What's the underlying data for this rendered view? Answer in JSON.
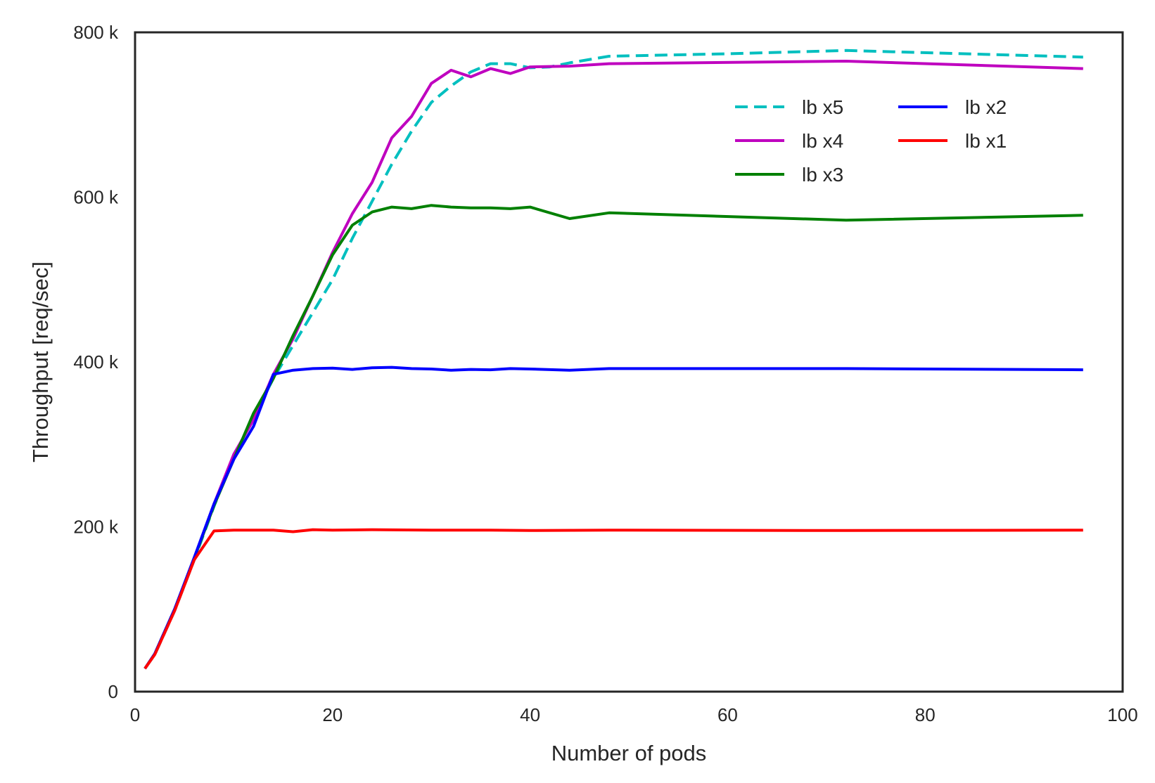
{
  "chart_data": {
    "type": "line",
    "title": "",
    "xlabel": "Number of pods",
    "ylabel": "Throughput [req/sec]",
    "xlim": [
      0,
      100
    ],
    "ylim": [
      0,
      800000
    ],
    "x_ticks": [
      0,
      20,
      40,
      60,
      80,
      100
    ],
    "x_tick_labels": [
      "0",
      "20",
      "40",
      "60",
      "80",
      "100"
    ],
    "y_ticks": [
      0,
      200000,
      400000,
      600000,
      800000
    ],
    "y_tick_labels": [
      "0",
      "200 k",
      "400 k",
      "600 k",
      "800 k"
    ],
    "grid": false,
    "legend": {
      "placement": "upper-right",
      "columns": 2
    },
    "series": [
      {
        "name": "lb x5",
        "color": "#00bfbf",
        "dashed": true,
        "points": [
          [
            1,
            28000
          ],
          [
            2,
            45000
          ],
          [
            4,
            98000
          ],
          [
            6,
            160000
          ],
          [
            8,
            225000
          ],
          [
            10,
            285000
          ],
          [
            12,
            333000
          ],
          [
            14,
            380000
          ],
          [
            16,
            420000
          ],
          [
            18,
            460000
          ],
          [
            20,
            500000
          ],
          [
            22,
            550000
          ],
          [
            24,
            595000
          ],
          [
            26,
            640000
          ],
          [
            28,
            680000
          ],
          [
            30,
            715000
          ],
          [
            32,
            735000
          ],
          [
            34,
            752000
          ],
          [
            36,
            762000
          ],
          [
            38,
            762000
          ],
          [
            40,
            757000
          ],
          [
            42,
            758000
          ],
          [
            44,
            763000
          ],
          [
            48,
            771000
          ],
          [
            60,
            774000
          ],
          [
            72,
            778000
          ],
          [
            96,
            770000
          ]
        ]
      },
      {
        "name": "lb x4",
        "color": "#bf00bf",
        "dashed": false,
        "points": [
          [
            1,
            28000
          ],
          [
            2,
            46000
          ],
          [
            4,
            100000
          ],
          [
            6,
            162000
          ],
          [
            8,
            228000
          ],
          [
            10,
            288000
          ],
          [
            12,
            330000
          ],
          [
            14,
            385000
          ],
          [
            16,
            428000
          ],
          [
            18,
            480000
          ],
          [
            20,
            533000
          ],
          [
            22,
            580000
          ],
          [
            24,
            618000
          ],
          [
            26,
            672000
          ],
          [
            28,
            698000
          ],
          [
            30,
            738000
          ],
          [
            32,
            754000
          ],
          [
            34,
            746000
          ],
          [
            36,
            756000
          ],
          [
            38,
            750000
          ],
          [
            40,
            758000
          ],
          [
            44,
            759000
          ],
          [
            48,
            762000
          ],
          [
            72,
            765000
          ],
          [
            96,
            756000
          ]
        ]
      },
      {
        "name": "lb x3",
        "color": "#008000",
        "dashed": false,
        "points": [
          [
            1,
            28000
          ],
          [
            2,
            46000
          ],
          [
            4,
            100000
          ],
          [
            6,
            162000
          ],
          [
            8,
            226000
          ],
          [
            10,
            282000
          ],
          [
            12,
            338000
          ],
          [
            14,
            380000
          ],
          [
            16,
            432000
          ],
          [
            18,
            480000
          ],
          [
            20,
            530000
          ],
          [
            22,
            566000
          ],
          [
            24,
            582000
          ],
          [
            26,
            588000
          ],
          [
            28,
            586000
          ],
          [
            30,
            590000
          ],
          [
            32,
            588000
          ],
          [
            34,
            587000
          ],
          [
            36,
            587000
          ],
          [
            38,
            586000
          ],
          [
            40,
            588000
          ],
          [
            44,
            574000
          ],
          [
            48,
            581000
          ],
          [
            72,
            572000
          ],
          [
            96,
            578000
          ]
        ]
      },
      {
        "name": "lb x2",
        "color": "#0000ff",
        "dashed": false,
        "points": [
          [
            1,
            28000
          ],
          [
            2,
            46000
          ],
          [
            4,
            100000
          ],
          [
            6,
            163000
          ],
          [
            8,
            228000
          ],
          [
            10,
            282000
          ],
          [
            12,
            322000
          ],
          [
            14,
            385000
          ],
          [
            16,
            390000
          ],
          [
            18,
            392000
          ],
          [
            20,
            392500
          ],
          [
            22,
            391000
          ],
          [
            24,
            393000
          ],
          [
            26,
            393500
          ],
          [
            28,
            392000
          ],
          [
            30,
            391500
          ],
          [
            32,
            390000
          ],
          [
            34,
            391000
          ],
          [
            36,
            390500
          ],
          [
            38,
            392000
          ],
          [
            40,
            391500
          ],
          [
            44,
            390000
          ],
          [
            48,
            392000
          ],
          [
            72,
            392000
          ],
          [
            96,
            390500
          ]
        ]
      },
      {
        "name": "lb x1",
        "color": "#ff0000",
        "dashed": false,
        "points": [
          [
            1,
            28000
          ],
          [
            2,
            45000
          ],
          [
            4,
            98000
          ],
          [
            6,
            160000
          ],
          [
            8,
            195000
          ],
          [
            10,
            196000
          ],
          [
            12,
            196000
          ],
          [
            14,
            196000
          ],
          [
            16,
            194000
          ],
          [
            18,
            196500
          ],
          [
            20,
            196000
          ],
          [
            24,
            196500
          ],
          [
            30,
            196000
          ],
          [
            36,
            196000
          ],
          [
            40,
            195500
          ],
          [
            48,
            196000
          ],
          [
            72,
            195500
          ],
          [
            96,
            196000
          ]
        ]
      }
    ]
  }
}
